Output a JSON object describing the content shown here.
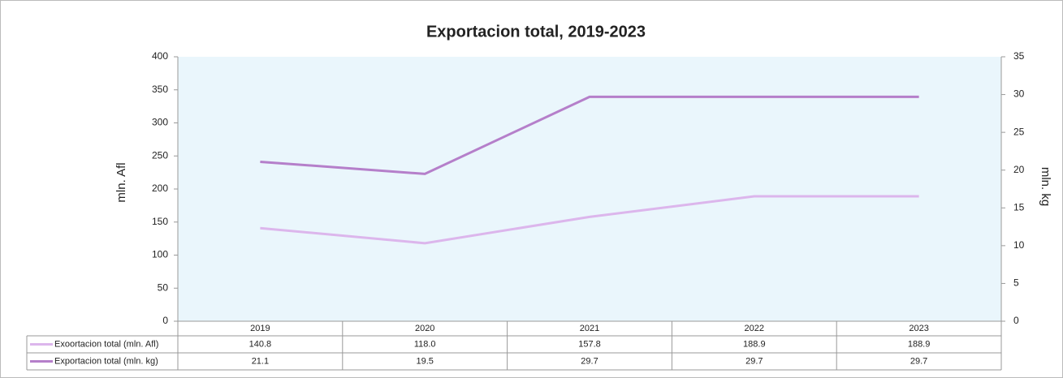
{
  "chart_data": {
    "type": "line",
    "title": "Exportacion total, 2019-2023",
    "y_label": "mln. Afl",
    "y2_label": "mln. kg",
    "categories": [
      "2019",
      "2020",
      "2021",
      "2022",
      "2023"
    ],
    "series": [
      {
        "name": "Exoortacion total (mln. Afl)",
        "color": "#dcb6ec",
        "values": [
          140.8,
          118.0,
          157.8,
          188.9,
          188.9
        ],
        "value_labels": [
          "140.8",
          "118.0",
          "157.8",
          "188.9",
          "188.9"
        ]
      },
      {
        "name": "Exportacion total (mln. kg)",
        "color": "#b57fca",
        "axis": "y2",
        "values": [
          21.1,
          19.5,
          29.7,
          29.7,
          29.7
        ]
      }
    ],
    "ylim": [
      0,
      400
    ],
    "yticks": [
      0,
      50,
      100,
      150,
      200,
      250,
      300,
      350,
      400
    ],
    "y2lim": [
      0,
      35
    ],
    "y2ticks": [
      0,
      5,
      10,
      15,
      20,
      25,
      30,
      35
    ],
    "grid": false,
    "data_table": true
  }
}
